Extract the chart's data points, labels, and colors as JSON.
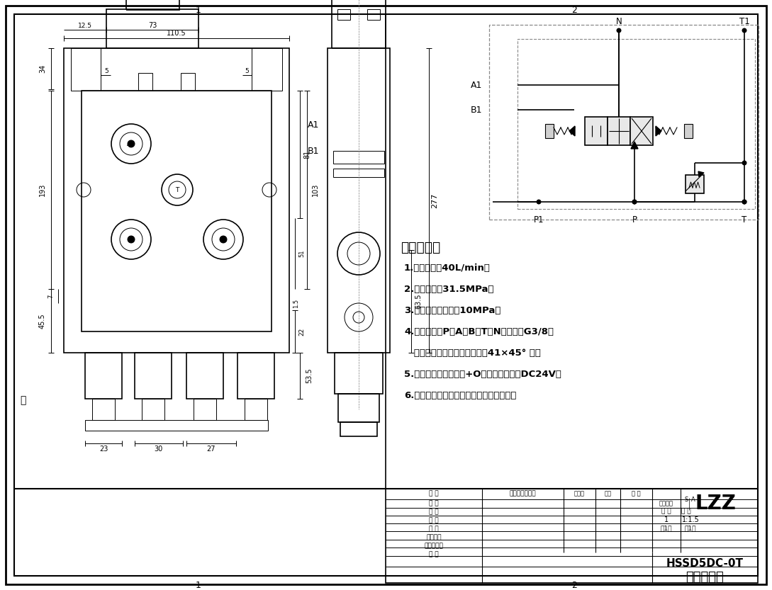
{
  "bg_color": "#ffffff",
  "line_color": "#000000",
  "tech_title": "技术要求：",
  "tech_lines": [
    "1.额定流量：40L/min；",
    "2.额定压力：31.5MPa；",
    "3.安全阀调定压力：10MPa；",
    "4.油口尺寸：P、A、B、T、N油口均为G3/8；",
    "   油口均为平面密封，油孔口倁41×45° 角；",
    "5.控制方式：电磁控制+O型阀杆；电压：DC24V；",
    "6.阀体表面磷化处理，安全阀及螺堡镀锌。"
  ],
  "title_company": "LZZ",
  "title_drawing_no": "HSSD5DC-0T",
  "title_name": "一联多路阀",
  "title_rows": [
    "设 计",
    "制 图",
    "描 图",
    "校 对",
    "工艺检查",
    "标准化检查",
    "审 核"
  ],
  "title_left_col": "备 记",
  "title_mid_col": "更改内容或依据",
  "title_change_person": "更改人",
  "title_date": "日期",
  "title_approve": "批 准",
  "fold_text": "折"
}
